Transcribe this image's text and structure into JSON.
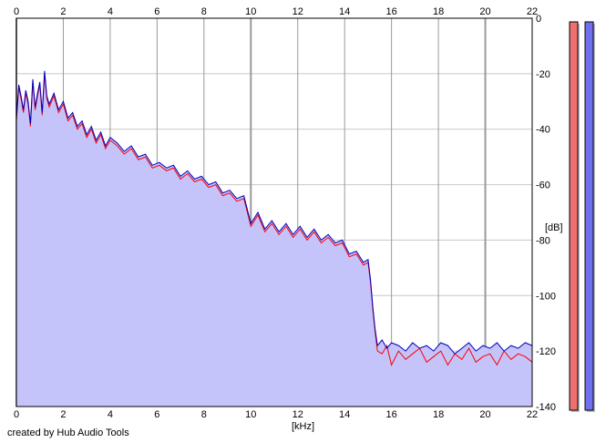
{
  "chart_data": {
    "type": "area",
    "title": "",
    "xlabel": "[kHz]",
    "ylabel": "[dB]",
    "xlim": [
      0,
      22
    ],
    "ylim": [
      -140,
      0
    ],
    "x_ticks": [
      0,
      2,
      4,
      6,
      8,
      10,
      12,
      14,
      16,
      18,
      20,
      22
    ],
    "y_ticks": [
      0,
      -20,
      -40,
      -60,
      -80,
      -100,
      -120,
      -140
    ],
    "y_tick_labels": [
      "0",
      "-20",
      "-40",
      "-60",
      "-80",
      "-100",
      "-120",
      "-140"
    ],
    "grid": true,
    "x": [
      0,
      0.1,
      0.2,
      0.3,
      0.4,
      0.5,
      0.6,
      0.7,
      0.8,
      0.9,
      1.0,
      1.1,
      1.2,
      1.3,
      1.4,
      1.6,
      1.8,
      2.0,
      2.2,
      2.4,
      2.6,
      2.8,
      3.0,
      3.2,
      3.4,
      3.6,
      3.8,
      4.0,
      4.3,
      4.6,
      4.9,
      5.2,
      5.5,
      5.8,
      6.1,
      6.4,
      6.7,
      7.0,
      7.3,
      7.6,
      7.9,
      8.2,
      8.5,
      8.8,
      9.1,
      9.4,
      9.7,
      10.0,
      10.3,
      10.6,
      10.9,
      11.2,
      11.5,
      11.8,
      12.1,
      12.4,
      12.7,
      13.0,
      13.3,
      13.6,
      13.9,
      14.2,
      14.5,
      14.8,
      15.0,
      15.1,
      15.2,
      15.3,
      15.4,
      15.6,
      15.8,
      16.0,
      16.3,
      16.6,
      16.9,
      17.2,
      17.5,
      17.8,
      18.1,
      18.4,
      18.7,
      19.0,
      19.3,
      19.6,
      19.9,
      20.2,
      20.5,
      20.8,
      21.1,
      21.4,
      21.7,
      22.0
    ],
    "series": [
      {
        "color": "#0000c0",
        "values": [
          -36,
          -24,
          -28,
          -33,
          -26,
          -30,
          -38,
          -22,
          -32,
          -27,
          -23,
          -34,
          -19,
          -28,
          -31,
          -27,
          -33,
          -30,
          -36,
          -34,
          -39,
          -37,
          -42,
          -39,
          -44,
          -41,
          -46,
          -43,
          -45,
          -48,
          -46,
          -50,
          -49,
          -53,
          -52,
          -54,
          -53,
          -57,
          -55,
          -58,
          -57,
          -60,
          -59,
          -63,
          -62,
          -65,
          -64,
          -74,
          -70,
          -76,
          -73,
          -77,
          -74,
          -78,
          -75,
          -79,
          -76,
          -80,
          -78,
          -81,
          -80,
          -85,
          -84,
          -88,
          -87,
          -94,
          -104,
          -112,
          -118,
          -116,
          -119,
          -117,
          -118,
          -120,
          -117,
          -119,
          -118,
          -120,
          -117,
          -118,
          -121,
          -119,
          -117,
          -120,
          -118,
          -119,
          -117,
          -120,
          -118,
          -119,
          -117,
          -118
        ]
      },
      {
        "color": "#ff0000",
        "values": [
          -37,
          -25,
          -29,
          -34,
          -27,
          -31,
          -39,
          -23,
          -33,
          -28,
          -24,
          -35,
          -20,
          -29,
          -32,
          -28,
          -34,
          -31,
          -37,
          -35,
          -40,
          -38,
          -43,
          -40,
          -45,
          -42,
          -47,
          -44,
          -46,
          -49,
          -47,
          -51,
          -50,
          -54,
          -53,
          -55,
          -54,
          -58,
          -56,
          -59,
          -58,
          -61,
          -60,
          -64,
          -63,
          -66,
          -65,
          -75,
          -71,
          -77,
          -74,
          -78,
          -75,
          -79,
          -76,
          -80,
          -77,
          -81,
          -79,
          -82,
          -81,
          -86,
          -85,
          -89,
          -88,
          -95,
          -105,
          -113,
          -120,
          -121,
          -118,
          -125,
          -120,
          -123,
          -121,
          -119,
          -124,
          -122,
          -120,
          -125,
          -121,
          -123,
          -119,
          -124,
          -122,
          -121,
          -125,
          -120,
          -123,
          -121,
          -122,
          -124
        ]
      }
    ]
  },
  "meters": [
    {
      "color": "#ee7070",
      "level": 1.0
    },
    {
      "color": "#7070ee",
      "level": 1.0
    }
  ],
  "credit": "created by Hub Audio Tools"
}
